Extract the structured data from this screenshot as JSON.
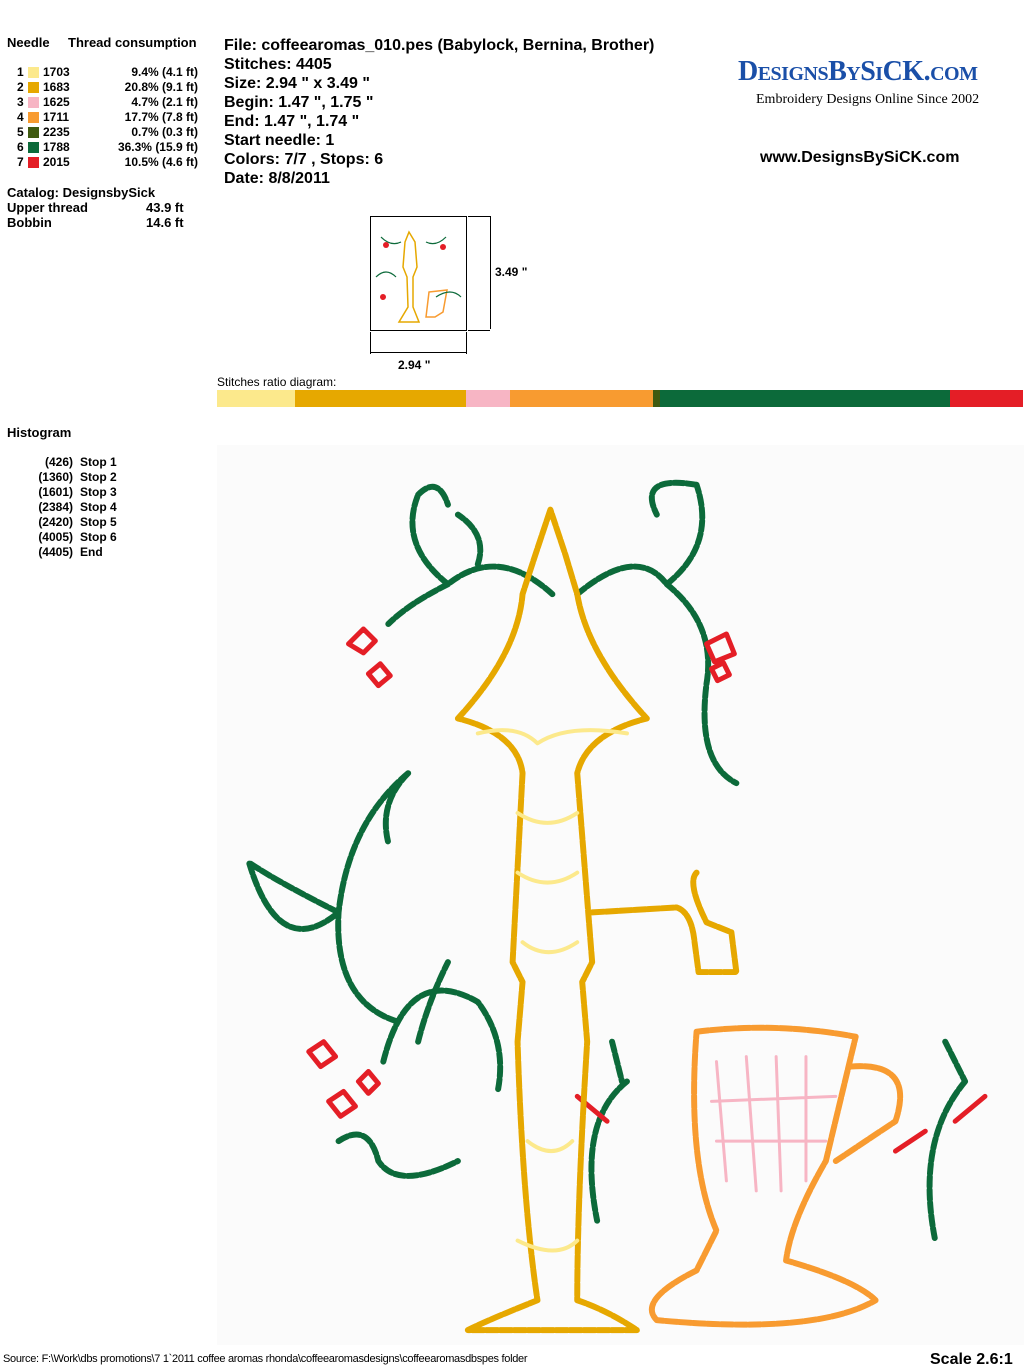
{
  "threads": {
    "header_needle": "Needle",
    "header_consumption": "Thread consumption",
    "items": [
      {
        "needle": "1",
        "code": "1703",
        "usage": "9.4% (4.1 ft)",
        "color": "#FCE98C"
      },
      {
        "needle": "2",
        "code": "1683",
        "usage": "20.8% (9.1 ft)",
        "color": "#E6A800"
      },
      {
        "needle": "3",
        "code": "1625",
        "usage": "4.7% (2.1 ft)",
        "color": "#F7B5C4"
      },
      {
        "needle": "4",
        "code": "1711",
        "usage": "17.7% (7.8 ft)",
        "color": "#F89B30"
      },
      {
        "needle": "5",
        "code": "2235",
        "usage": "0.7% (0.3 ft)",
        "color": "#3F5A10"
      },
      {
        "needle": "6",
        "code": "1788",
        "usage": "36.3% (15.9 ft)",
        "color": "#0C6A3A"
      },
      {
        "needle": "7",
        "code": "2015",
        "usage": "10.5% (4.6 ft)",
        "color": "#E41E26"
      }
    ],
    "catalog": "Catalog: DesignsbySick",
    "upper_label": "Upper thread",
    "upper_value": "43.9 ft",
    "bobbin_label": "Bobbin",
    "bobbin_value": "14.6 ft"
  },
  "file_info": {
    "file": "File: coffeearomas_010.pes  (Babylock, Bernina, Brother)",
    "stitches": "Stitches: 4405",
    "size": "Size: 2.94 \" x 3.49 \"",
    "begin": "Begin: 1.47 \", 1.75 \"",
    "end": "End: 1.47 \", 1.74 \"",
    "start_needle": "Start needle: 1",
    "colors": "Colors: 7/7 , Stops: 6",
    "date": "Date: 8/8/2011"
  },
  "logo": {
    "name": "DesignsBySiCK.com",
    "tagline": "Embroidery Designs Online Since 2002",
    "url": "www.DesignsBySiCK.com"
  },
  "thumbnail": {
    "height_label": "3.49 \"",
    "width_label": "2.94 \""
  },
  "ratio": {
    "label": "Stitches ratio diagram:"
  },
  "histogram": {
    "title": "Histogram",
    "stops": [
      {
        "count": "(426)",
        "label": "Stop 1",
        "value": 426
      },
      {
        "count": "(1360)",
        "label": "Stop 2",
        "value": 1360
      },
      {
        "count": "(1601)",
        "label": "Stop 3",
        "value": 1601
      },
      {
        "count": "(2384)",
        "label": "Stop 4",
        "value": 2384
      },
      {
        "count": "(2420)",
        "label": "Stop 5",
        "value": 2420
      },
      {
        "count": "(4005)",
        "label": "Stop 6",
        "value": 4005
      },
      {
        "count": "(4405)",
        "label": "End",
        "value": 4405
      }
    ]
  },
  "footer": {
    "source": "Source: F:\\Work\\dbs promotions\\7 1`2011 coffee aromas rhonda\\coffeearomasdesigns\\coffeearomasdbspes folder",
    "scale": "Scale 2.6:1"
  }
}
